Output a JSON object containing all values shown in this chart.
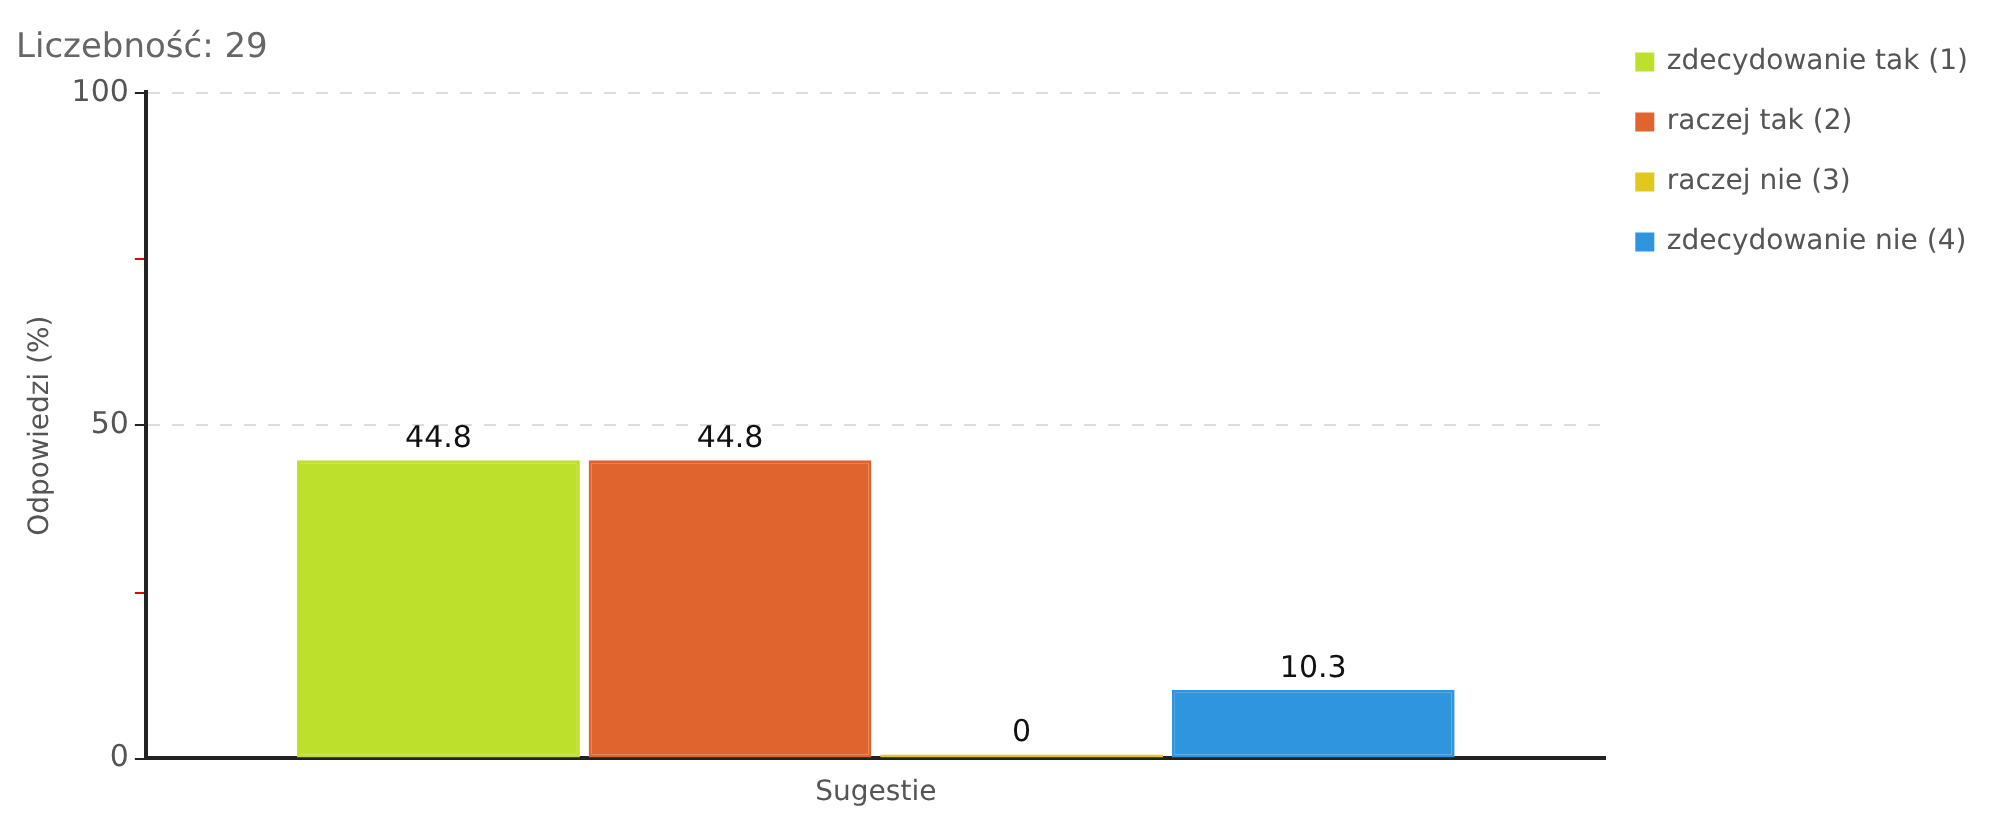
{
  "chart_data": {
    "type": "bar",
    "title": "Liczebność: 29",
    "ylabel": "Odpowiedzi (%)",
    "categories": [
      "Sugestie"
    ],
    "series": [
      {
        "name": "zdecydowanie tak (1)",
        "color": "#bde02c",
        "values": [
          44.8
        ]
      },
      {
        "name": "raczej tak (2)",
        "color": "#e0642e",
        "values": [
          44.8
        ]
      },
      {
        "name": "raczej nie (3)",
        "color": "#e0c81e",
        "values": [
          0
        ]
      },
      {
        "name": "zdecydowanie nie (4)",
        "color": "#2e95de",
        "values": [
          10.3
        ]
      }
    ],
    "ylim": [
      0,
      100
    ],
    "yticks": [
      0,
      {
        "value": 25,
        "label": null
      },
      50,
      {
        "value": 75,
        "label": null
      },
      100
    ],
    "grid": "y",
    "legend": "top right",
    "data_labels": true
  }
}
